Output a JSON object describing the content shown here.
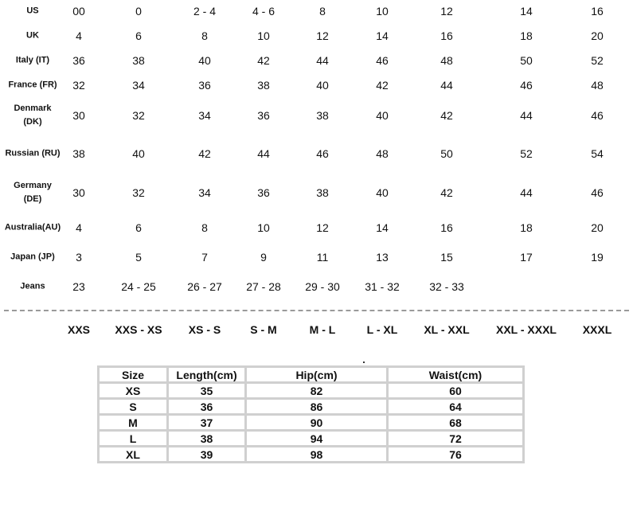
{
  "conversion_table": {
    "rows": [
      {
        "label": "US",
        "values": [
          "00",
          "0",
          "2 - 4",
          "4 - 6",
          "8",
          "10",
          "12",
          "14",
          "16"
        ]
      },
      {
        "label": "UK",
        "values": [
          "4",
          "6",
          "8",
          "10",
          "12",
          "14",
          "16",
          "18",
          "20"
        ]
      },
      {
        "label": "Italy (IT)",
        "values": [
          "36",
          "38",
          "40",
          "42",
          "44",
          "46",
          "48",
          "50",
          "52"
        ]
      },
      {
        "label": "France (FR)",
        "values": [
          "32",
          "34",
          "36",
          "38",
          "40",
          "42",
          "44",
          "46",
          "48"
        ]
      },
      {
        "label": "Denmark (DK)",
        "values": [
          "30",
          "32",
          "34",
          "36",
          "38",
          "40",
          "42",
          "44",
          "46"
        ]
      },
      {
        "label": "Russian (RU)",
        "values": [
          "38",
          "40",
          "42",
          "44",
          "46",
          "48",
          "50",
          "52",
          "54"
        ]
      },
      {
        "label": "Germany (DE)",
        "values": [
          "30",
          "32",
          "34",
          "36",
          "38",
          "40",
          "42",
          "44",
          "46"
        ]
      },
      {
        "label": "Australia(AU)",
        "values": [
          "4",
          "6",
          "8",
          "10",
          "12",
          "14",
          "16",
          "18",
          "20"
        ]
      },
      {
        "label": "Japan (JP)",
        "values": [
          "3",
          "5",
          "7",
          "9",
          "11",
          "13",
          "15",
          "17",
          "19"
        ]
      },
      {
        "label": "Jeans",
        "values": [
          "23",
          "24 - 25",
          "26 - 27",
          "27 - 28",
          "29 - 30",
          "31 - 32",
          "32 - 33",
          "",
          ""
        ]
      }
    ],
    "letter_sizes": [
      "XXS",
      "XXS - XS",
      "XS - S",
      "S - M",
      "M - L",
      "L - XL",
      "XL - XXL",
      "XXL - XXXL",
      "XXXL"
    ]
  },
  "measurement_table": {
    "headers": [
      "Size",
      "Length(cm)",
      "Hip(cm)",
      "Waist(cm)"
    ],
    "rows": [
      [
        "XS",
        "35",
        "82",
        "60"
      ],
      [
        "S",
        "36",
        "86",
        "64"
      ],
      [
        "M",
        "37",
        "90",
        "68"
      ],
      [
        "L",
        "38",
        "94",
        "72"
      ],
      [
        "XL",
        "39",
        "98",
        "76"
      ]
    ]
  }
}
